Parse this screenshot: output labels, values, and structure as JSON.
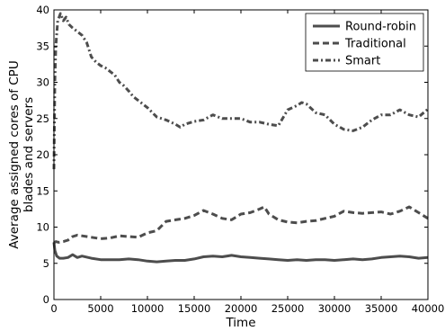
{
  "chart_data": {
    "type": "line",
    "title": "",
    "xlabel": "Time",
    "ylabel_lines": [
      "Average assigned cores of CPU",
      "blades and servers"
    ],
    "xlim": [
      0,
      40000
    ],
    "ylim": [
      0,
      40
    ],
    "xticks": [
      0,
      5000,
      10000,
      15000,
      20000,
      25000,
      30000,
      35000,
      40000
    ],
    "yticks": [
      0,
      5,
      10,
      15,
      20,
      25,
      30,
      35,
      40
    ],
    "grid": false,
    "legend_position": "top-right",
    "colors": {
      "series": "#4d4d4d",
      "axes": "#000000",
      "background": "#ffffff"
    },
    "series": [
      {
        "name": "Round-robin",
        "style": "solid",
        "x": [
          0,
          100,
          300,
          600,
          1000,
          1500,
          2000,
          2500,
          3000,
          4000,
          5000,
          6000,
          7000,
          8000,
          9000,
          10000,
          11000,
          12000,
          13000,
          14000,
          15000,
          16000,
          17000,
          18000,
          19000,
          20000,
          21000,
          22000,
          23000,
          24000,
          25000,
          26000,
          27000,
          28000,
          29000,
          30000,
          31000,
          32000,
          33000,
          34000,
          35000,
          36000,
          37000,
          38000,
          39000,
          40000
        ],
        "y": [
          7.9,
          6.8,
          6.0,
          5.7,
          5.7,
          5.8,
          6.2,
          5.8,
          6.0,
          5.7,
          5.5,
          5.5,
          5.5,
          5.6,
          5.5,
          5.3,
          5.2,
          5.3,
          5.4,
          5.4,
          5.6,
          5.9,
          6.0,
          5.9,
          6.1,
          5.9,
          5.8,
          5.7,
          5.6,
          5.5,
          5.4,
          5.5,
          5.4,
          5.5,
          5.5,
          5.4,
          5.5,
          5.6,
          5.5,
          5.6,
          5.8,
          5.9,
          6.0,
          5.9,
          5.7,
          5.8
        ]
      },
      {
        "name": "Traditional",
        "style": "dashed",
        "x": [
          0,
          200,
          500,
          1000,
          1500,
          2000,
          2500,
          3000,
          4000,
          5000,
          6000,
          7000,
          8000,
          9000,
          10000,
          11000,
          12000,
          13000,
          14000,
          15000,
          16000,
          17000,
          18000,
          19000,
          20000,
          21000,
          22000,
          22500,
          23000,
          24000,
          25000,
          26000,
          27000,
          28000,
          29000,
          30000,
          31000,
          32000,
          33000,
          34000,
          35000,
          36000,
          37000,
          38000,
          39000,
          40000
        ],
        "y": [
          7.8,
          8.0,
          7.9,
          8.0,
          8.2,
          8.7,
          8.9,
          8.8,
          8.6,
          8.4,
          8.5,
          8.8,
          8.7,
          8.6,
          9.2,
          9.5,
          10.8,
          11.0,
          11.2,
          11.6,
          12.3,
          11.8,
          11.2,
          11.0,
          11.8,
          12.0,
          12.5,
          12.8,
          11.8,
          11.0,
          10.7,
          10.6,
          10.8,
          10.9,
          11.2,
          11.5,
          12.2,
          12.0,
          11.9,
          12.0,
          12.1,
          11.8,
          12.2,
          12.8,
          12.0,
          11.2
        ]
      },
      {
        "name": "Smart",
        "style": "dash-dot",
        "x": [
          0,
          100,
          200,
          400,
          700,
          1000,
          1300,
          1600,
          2000,
          2500,
          3000,
          3500,
          4000,
          4500,
          5000,
          5500,
          6000,
          6500,
          7000,
          7500,
          8000,
          8500,
          9000,
          10000,
          11000,
          12000,
          13000,
          13500,
          14000,
          15000,
          16000,
          17000,
          18000,
          19000,
          20000,
          21000,
          22000,
          23000,
          24000,
          25000,
          26000,
          26500,
          27000,
          28000,
          29000,
          30000,
          31000,
          32000,
          33000,
          34000,
          35000,
          36000,
          37000,
          38000,
          39000,
          40000
        ],
        "y": [
          18.0,
          30.0,
          35.0,
          38.5,
          39.5,
          38.5,
          39.0,
          38.0,
          37.5,
          37.0,
          36.5,
          35.5,
          33.5,
          32.8,
          32.3,
          32.0,
          31.5,
          31.0,
          30.0,
          29.5,
          28.8,
          28.0,
          27.5,
          26.5,
          25.2,
          24.8,
          24.2,
          23.8,
          24.2,
          24.6,
          24.8,
          25.5,
          25.0,
          25.0,
          25.0,
          24.5,
          24.5,
          24.2,
          24.0,
          26.2,
          26.8,
          27.2,
          27.0,
          25.8,
          25.5,
          24.2,
          23.5,
          23.3,
          23.8,
          24.8,
          25.5,
          25.5,
          26.2,
          25.5,
          25.2,
          26.3
        ]
      }
    ]
  }
}
